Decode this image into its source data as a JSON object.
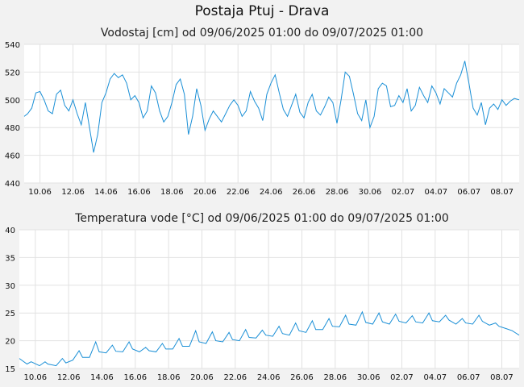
{
  "page_title": "Postaja Ptuj - Drava",
  "colors": {
    "line": "#1a8fd6",
    "grid": "#e2e2e2",
    "plot_bg": "#ffffff",
    "page_bg": "#f2f2f2"
  },
  "chart_data": [
    {
      "type": "line",
      "title": "Vodostaj [cm] od 09/06/2025 01:00 do 09/07/2025 01:00",
      "x_start": "2025-06-09T01:00",
      "x_end": "2025-07-09T01:00",
      "x_tick_labels": [
        "10.06",
        "12.06",
        "14.06",
        "16.06",
        "18.06",
        "20.06",
        "22.06",
        "24.06",
        "26.06",
        "28.06",
        "30.06",
        "02.07",
        "04.07",
        "06.07",
        "08.07"
      ],
      "ylim": [
        440,
        540
      ],
      "y_ticks": [
        440,
        460,
        480,
        500,
        520,
        540
      ],
      "grid": true,
      "series": [
        {
          "points": [
            [
              "2025-06-09T01:00",
              488
            ],
            [
              "2025-06-09T06:00",
              490
            ],
            [
              "2025-06-09T12:00",
              494
            ],
            [
              "2025-06-09T18:00",
              505
            ],
            [
              "2025-06-10T00:00",
              506
            ],
            [
              "2025-06-10T06:00",
              500
            ],
            [
              "2025-06-10T12:00",
              492
            ],
            [
              "2025-06-10T18:00",
              490
            ],
            [
              "2025-06-11T00:00",
              504
            ],
            [
              "2025-06-11T06:00",
              507
            ],
            [
              "2025-06-11T12:00",
              496
            ],
            [
              "2025-06-11T18:00",
              492
            ],
            [
              "2025-06-12T00:00",
              500
            ],
            [
              "2025-06-12T06:00",
              490
            ],
            [
              "2025-06-12T12:00",
              482
            ],
            [
              "2025-06-12T18:00",
              498
            ],
            [
              "2025-06-13T00:00",
              480
            ],
            [
              "2025-06-13T06:00",
              462
            ],
            [
              "2025-06-13T12:00",
              475
            ],
            [
              "2025-06-13T18:00",
              498
            ],
            [
              "2025-06-14T00:00",
              505
            ],
            [
              "2025-06-14T06:00",
              515
            ],
            [
              "2025-06-14T12:00",
              519
            ],
            [
              "2025-06-14T18:00",
              516
            ],
            [
              "2025-06-15T00:00",
              518
            ],
            [
              "2025-06-15T06:00",
              512
            ],
            [
              "2025-06-15T12:00",
              500
            ],
            [
              "2025-06-15T18:00",
              503
            ],
            [
              "2025-06-16T00:00",
              498
            ],
            [
              "2025-06-16T06:00",
              487
            ],
            [
              "2025-06-16T12:00",
              492
            ],
            [
              "2025-06-16T18:00",
              510
            ],
            [
              "2025-06-17T00:00",
              505
            ],
            [
              "2025-06-17T06:00",
              492
            ],
            [
              "2025-06-17T12:00",
              484
            ],
            [
              "2025-06-17T18:00",
              488
            ],
            [
              "2025-06-18T00:00",
              498
            ],
            [
              "2025-06-18T06:00",
              511
            ],
            [
              "2025-06-18T12:00",
              515
            ],
            [
              "2025-06-18T18:00",
              504
            ],
            [
              "2025-06-19T00:00",
              475
            ],
            [
              "2025-06-19T06:00",
              488
            ],
            [
              "2025-06-19T12:00",
              508
            ],
            [
              "2025-06-19T18:00",
              496
            ],
            [
              "2025-06-20T00:00",
              478
            ],
            [
              "2025-06-20T06:00",
              486
            ],
            [
              "2025-06-20T12:00",
              492
            ],
            [
              "2025-06-20T18:00",
              488
            ],
            [
              "2025-06-21T00:00",
              484
            ],
            [
              "2025-06-21T06:00",
              490
            ],
            [
              "2025-06-21T12:00",
              496
            ],
            [
              "2025-06-21T18:00",
              500
            ],
            [
              "2025-06-22T00:00",
              496
            ],
            [
              "2025-06-22T06:00",
              488
            ],
            [
              "2025-06-22T12:00",
              492
            ],
            [
              "2025-06-22T18:00",
              506
            ],
            [
              "2025-06-23T00:00",
              499
            ],
            [
              "2025-06-23T06:00",
              494
            ],
            [
              "2025-06-23T12:00",
              485
            ],
            [
              "2025-06-23T18:00",
              504
            ],
            [
              "2025-06-24T00:00",
              512
            ],
            [
              "2025-06-24T06:00",
              518
            ],
            [
              "2025-06-24T12:00",
              505
            ],
            [
              "2025-06-24T18:00",
              493
            ],
            [
              "2025-06-25T00:00",
              488
            ],
            [
              "2025-06-25T06:00",
              496
            ],
            [
              "2025-06-25T12:00",
              504
            ],
            [
              "2025-06-25T18:00",
              491
            ],
            [
              "2025-06-26T00:00",
              487
            ],
            [
              "2025-06-26T06:00",
              498
            ],
            [
              "2025-06-26T12:00",
              504
            ],
            [
              "2025-06-26T18:00",
              492
            ],
            [
              "2025-06-27T00:00",
              489
            ],
            [
              "2025-06-27T06:00",
              495
            ],
            [
              "2025-06-27T12:00",
              502
            ],
            [
              "2025-06-27T18:00",
              498
            ],
            [
              "2025-06-28T00:00",
              483
            ],
            [
              "2025-06-28T06:00",
              500
            ],
            [
              "2025-06-28T12:00",
              520
            ],
            [
              "2025-06-28T18:00",
              517
            ],
            [
              "2025-06-29T00:00",
              504
            ],
            [
              "2025-06-29T06:00",
              490
            ],
            [
              "2025-06-29T12:00",
              485
            ],
            [
              "2025-06-29T18:00",
              500
            ],
            [
              "2025-06-30T00:00",
              480
            ],
            [
              "2025-06-30T06:00",
              488
            ],
            [
              "2025-06-30T12:00",
              508
            ],
            [
              "2025-06-30T18:00",
              512
            ],
            [
              "2025-07-01T00:00",
              510
            ],
            [
              "2025-07-01T06:00",
              495
            ],
            [
              "2025-07-01T12:00",
              496
            ],
            [
              "2025-07-01T18:00",
              503
            ],
            [
              "2025-07-02T00:00",
              498
            ],
            [
              "2025-07-02T06:00",
              508
            ],
            [
              "2025-07-02T12:00",
              492
            ],
            [
              "2025-07-02T18:00",
              496
            ],
            [
              "2025-07-03T00:00",
              509
            ],
            [
              "2025-07-03T06:00",
              503
            ],
            [
              "2025-07-03T12:00",
              498
            ],
            [
              "2025-07-03T18:00",
              510
            ],
            [
              "2025-07-04T00:00",
              505
            ],
            [
              "2025-07-04T06:00",
              497
            ],
            [
              "2025-07-04T12:00",
              508
            ],
            [
              "2025-07-04T18:00",
              505
            ],
            [
              "2025-07-05T00:00",
              502
            ],
            [
              "2025-07-05T06:00",
              512
            ],
            [
              "2025-07-05T12:00",
              518
            ],
            [
              "2025-07-05T18:00",
              528
            ],
            [
              "2025-07-06T00:00",
              512
            ],
            [
              "2025-07-06T06:00",
              494
            ],
            [
              "2025-07-06T12:00",
              489
            ],
            [
              "2025-07-06T18:00",
              498
            ],
            [
              "2025-07-07T00:00",
              482
            ],
            [
              "2025-07-07T06:00",
              494
            ],
            [
              "2025-07-07T12:00",
              497
            ],
            [
              "2025-07-07T18:00",
              493
            ],
            [
              "2025-07-08T00:00",
              500
            ],
            [
              "2025-07-08T06:00",
              496
            ],
            [
              "2025-07-08T12:00",
              499
            ],
            [
              "2025-07-08T18:00",
              501
            ],
            [
              "2025-07-09T01:00",
              500
            ]
          ]
        }
      ]
    },
    {
      "type": "line",
      "title": "Temperatura vode [°C] od 09/06/2025 01:00 do 09/07/2025 01:00",
      "x_start": "2025-06-09T01:00",
      "x_end": "2025-07-09T01:00",
      "x_tick_labels": [
        "10.06",
        "12.06",
        "14.06",
        "16.06",
        "18.06",
        "20.06",
        "22.06",
        "24.06",
        "26.06",
        "28.06",
        "30.06",
        "02.07",
        "04.07",
        "06.07",
        "08.07"
      ],
      "ylim": [
        15,
        40
      ],
      "y_ticks": [
        15,
        20,
        25,
        30,
        35,
        40
      ],
      "grid": true,
      "series": [
        {
          "points": [
            [
              "2025-06-09T01:00",
              16.8
            ],
            [
              "2025-06-09T12:00",
              15.8
            ],
            [
              "2025-06-09T18:00",
              16.2
            ],
            [
              "2025-06-10T06:00",
              15.5
            ],
            [
              "2025-06-10T14:00",
              16.2
            ],
            [
              "2025-06-10T18:00",
              15.8
            ],
            [
              "2025-06-11T06:00",
              15.5
            ],
            [
              "2025-06-11T15:00",
              16.8
            ],
            [
              "2025-06-11T20:00",
              16.0
            ],
            [
              "2025-06-12T06:00",
              16.5
            ],
            [
              "2025-06-12T15:00",
              18.2
            ],
            [
              "2025-06-12T20:00",
              17.0
            ],
            [
              "2025-06-13T06:00",
              17.0
            ],
            [
              "2025-06-13T15:00",
              19.8
            ],
            [
              "2025-06-13T20:00",
              18.0
            ],
            [
              "2025-06-14T06:00",
              17.8
            ],
            [
              "2025-06-14T15:00",
              19.2
            ],
            [
              "2025-06-14T20:00",
              18.1
            ],
            [
              "2025-06-15T06:00",
              18.0
            ],
            [
              "2025-06-15T15:00",
              19.8
            ],
            [
              "2025-06-15T20:00",
              18.5
            ],
            [
              "2025-06-16T06:00",
              18.0
            ],
            [
              "2025-06-16T15:00",
              18.8
            ],
            [
              "2025-06-16T20:00",
              18.2
            ],
            [
              "2025-06-17T06:00",
              18.0
            ],
            [
              "2025-06-17T15:00",
              19.5
            ],
            [
              "2025-06-17T20:00",
              18.5
            ],
            [
              "2025-06-18T06:00",
              18.5
            ],
            [
              "2025-06-18T15:00",
              20.4
            ],
            [
              "2025-06-18T20:00",
              19.0
            ],
            [
              "2025-06-19T06:00",
              19.0
            ],
            [
              "2025-06-19T15:00",
              21.8
            ],
            [
              "2025-06-19T20:00",
              19.8
            ],
            [
              "2025-06-20T06:00",
              19.5
            ],
            [
              "2025-06-20T15:00",
              21.6
            ],
            [
              "2025-06-20T20:00",
              20.0
            ],
            [
              "2025-06-21T06:00",
              19.8
            ],
            [
              "2025-06-21T15:00",
              21.5
            ],
            [
              "2025-06-21T20:00",
              20.2
            ],
            [
              "2025-06-22T06:00",
              20.0
            ],
            [
              "2025-06-22T15:00",
              22.0
            ],
            [
              "2025-06-22T20:00",
              20.6
            ],
            [
              "2025-06-23T06:00",
              20.5
            ],
            [
              "2025-06-23T15:00",
              21.9
            ],
            [
              "2025-06-23T20:00",
              21.0
            ],
            [
              "2025-06-24T06:00",
              20.8
            ],
            [
              "2025-06-24T15:00",
              22.6
            ],
            [
              "2025-06-24T20:00",
              21.3
            ],
            [
              "2025-06-25T06:00",
              21.0
            ],
            [
              "2025-06-25T15:00",
              23.2
            ],
            [
              "2025-06-25T20:00",
              21.8
            ],
            [
              "2025-06-26T06:00",
              21.5
            ],
            [
              "2025-06-26T15:00",
              23.6
            ],
            [
              "2025-06-26T20:00",
              22.0
            ],
            [
              "2025-06-27T06:00",
              22.0
            ],
            [
              "2025-06-27T15:00",
              24.0
            ],
            [
              "2025-06-27T20:00",
              22.6
            ],
            [
              "2025-06-28T06:00",
              22.5
            ],
            [
              "2025-06-28T15:00",
              24.6
            ],
            [
              "2025-06-28T20:00",
              23.0
            ],
            [
              "2025-06-29T06:00",
              22.8
            ],
            [
              "2025-06-29T15:00",
              25.2
            ],
            [
              "2025-06-29T20:00",
              23.3
            ],
            [
              "2025-06-30T06:00",
              23.0
            ],
            [
              "2025-06-30T15:00",
              25.0
            ],
            [
              "2025-06-30T20:00",
              23.4
            ],
            [
              "2025-07-01T06:00",
              23.0
            ],
            [
              "2025-07-01T15:00",
              24.8
            ],
            [
              "2025-07-01T20:00",
              23.5
            ],
            [
              "2025-07-02T06:00",
              23.2
            ],
            [
              "2025-07-02T15:00",
              24.5
            ],
            [
              "2025-07-02T20:00",
              23.4
            ],
            [
              "2025-07-03T06:00",
              23.2
            ],
            [
              "2025-07-03T15:00",
              25.0
            ],
            [
              "2025-07-03T20:00",
              23.6
            ],
            [
              "2025-07-04T06:00",
              23.4
            ],
            [
              "2025-07-04T15:00",
              24.6
            ],
            [
              "2025-07-04T20:00",
              23.7
            ],
            [
              "2025-07-05T06:00",
              23.0
            ],
            [
              "2025-07-05T15:00",
              24.0
            ],
            [
              "2025-07-05T20:00",
              23.2
            ],
            [
              "2025-07-06T06:00",
              23.0
            ],
            [
              "2025-07-06T15:00",
              24.6
            ],
            [
              "2025-07-06T20:00",
              23.5
            ],
            [
              "2025-07-07T06:00",
              22.8
            ],
            [
              "2025-07-07T15:00",
              23.2
            ],
            [
              "2025-07-07T20:00",
              22.6
            ],
            [
              "2025-07-08T06:00",
              22.2
            ],
            [
              "2025-07-08T15:00",
              21.8
            ],
            [
              "2025-07-08T20:00",
              21.4
            ],
            [
              "2025-07-09T01:00",
              21.0
            ]
          ]
        }
      ]
    }
  ]
}
